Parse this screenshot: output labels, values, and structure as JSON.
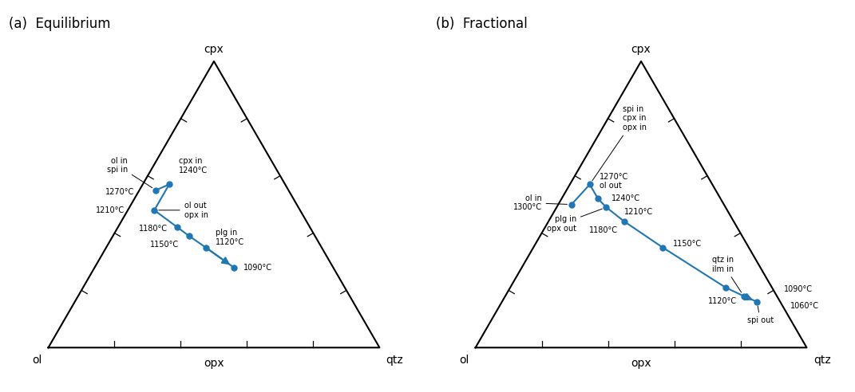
{
  "chart_data": [
    {
      "type": "ternary",
      "title": "(a)  Equilibrium",
      "corners": [
        "cpx",
        "ol",
        "qtz"
      ],
      "ticks": [
        0.2,
        0.4,
        0.6,
        0.8
      ],
      "tick_labels": false,
      "marker": "o",
      "line_style": "solid",
      "points": [
        {
          "cpx": 0.55,
          "ol": 0.4,
          "qtz": 0.05
        },
        {
          "cpx": 0.57,
          "ol": 0.35,
          "qtz": 0.08
        },
        {
          "cpx": 0.48,
          "ol": 0.44,
          "qtz": 0.08
        },
        {
          "cpx": 0.42,
          "ol": 0.4,
          "qtz": 0.18
        },
        {
          "cpx": 0.39,
          "ol": 0.38,
          "qtz": 0.23
        },
        {
          "cpx": 0.35,
          "ol": 0.35,
          "qtz": 0.3
        },
        {
          "cpx": 0.28,
          "ol": 0.3,
          "qtz": 0.42
        }
      ],
      "annotations": [
        {
          "text": "opx",
          "at": {
            "cpx": 0,
            "ol": 0.5,
            "qtz": 0.5
          }
        },
        {
          "text": "ol in\nspi in",
          "point": 0
        },
        {
          "text": "cpx in\n1240°C",
          "point": 1
        },
        {
          "text": "1270°C",
          "point": 0
        },
        {
          "text": "1210°C",
          "point": 2
        },
        {
          "text": "ol out\nopx in",
          "point": 2
        },
        {
          "text": "1180°C",
          "point": 3
        },
        {
          "text": "1150°C",
          "point": 4
        },
        {
          "text": "plg in\n1120°C",
          "point": 5
        },
        {
          "text": "1090°C",
          "point": 6
        }
      ]
    },
    {
      "type": "ternary",
      "title": "(b)  Fractional",
      "corners": [
        "cpx",
        "ol",
        "qtz"
      ],
      "ticks": [
        0.2,
        0.4,
        0.6,
        0.8
      ],
      "tick_labels": false,
      "marker": "o",
      "line_style": "solid",
      "points": [
        {
          "cpx": 0.5,
          "ol": 0.46,
          "qtz": 0.04
        },
        {
          "cpx": 0.57,
          "ol": 0.37,
          "qtz": 0.06
        },
        {
          "cpx": 0.52,
          "ol": 0.37,
          "qtz": 0.11
        },
        {
          "cpx": 0.49,
          "ol": 0.36,
          "qtz": 0.15
        },
        {
          "cpx": 0.44,
          "ol": 0.33,
          "qtz": 0.23
        },
        {
          "cpx": 0.35,
          "ol": 0.26,
          "qtz": 0.39
        },
        {
          "cpx": 0.21,
          "ol": 0.14,
          "qtz": 0.65
        },
        {
          "cpx": 0.18,
          "ol": 0.1,
          "qtz": 0.72
        },
        {
          "cpx": 0.16,
          "ol": 0.07,
          "qtz": 0.77
        }
      ],
      "annotations": [
        {
          "text": "opx",
          "at": {
            "cpx": 0,
            "ol": 0.5,
            "qtz": 0.5
          }
        },
        {
          "text": "ol in\n1300°C",
          "point": 0
        },
        {
          "text": "spi in\ncpx in\nopx in",
          "point": 1
        },
        {
          "text": "1270°C\nol out",
          "point": 1
        },
        {
          "text": "1240°C",
          "point": 2
        },
        {
          "text": "1210°C",
          "point": 3
        },
        {
          "text": "plg in\nopx out",
          "point": 3
        },
        {
          "text": "1180°C",
          "point": 4
        },
        {
          "text": "1150°C",
          "point": 5
        },
        {
          "text": "1120°C",
          "point": 6
        },
        {
          "text": "qtz in\nilm in",
          "point": 7
        },
        {
          "text": "1090°C",
          "point": 7
        },
        {
          "text": "spi out",
          "point": 8
        },
        {
          "text": "1060°C",
          "point": 8
        }
      ]
    }
  ]
}
